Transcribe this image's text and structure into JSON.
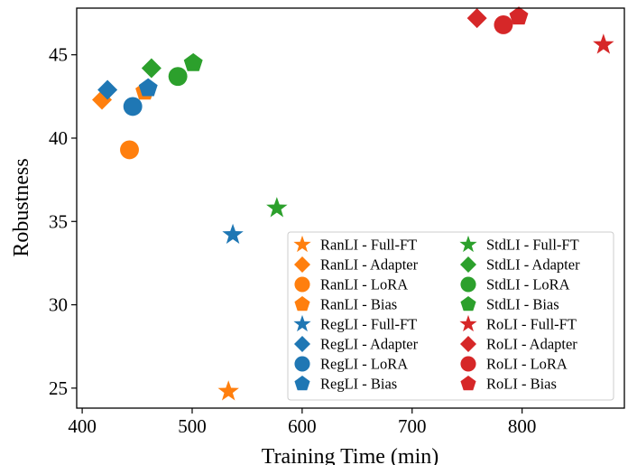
{
  "chart_data": {
    "type": "scatter",
    "title": "",
    "xlabel": "Training Time (min)",
    "ylabel": "Robustness",
    "xlim": [
      395,
      893
    ],
    "ylim": [
      23.8,
      47.8
    ],
    "xticks": [
      400,
      500,
      600,
      700,
      800
    ],
    "yticks": [
      25,
      30,
      35,
      40,
      45
    ],
    "grid": false,
    "legend_position": "bottom-right",
    "legend_columns": 2,
    "colors": {
      "RanLI": "#ff7f0e",
      "RegLI": "#1f77b4",
      "StdLI": "#2ca02c",
      "RoLI": "#d62728"
    },
    "markers": {
      "Full-FT": "star",
      "Adapter": "diamond",
      "LoRA": "circle",
      "Bias": "pentagon"
    },
    "series": [
      {
        "name": "RanLI - Full-FT",
        "method": "RanLI",
        "variant": "Full-FT",
        "x": 533,
        "y": 24.8
      },
      {
        "name": "RanLI - Adapter",
        "method": "RanLI",
        "variant": "Adapter",
        "x": 418,
        "y": 42.3
      },
      {
        "name": "RanLI - LoRA",
        "method": "RanLI",
        "variant": "LoRA",
        "x": 443,
        "y": 39.3
      },
      {
        "name": "RanLI - Bias",
        "method": "RanLI",
        "variant": "Bias",
        "x": 457,
        "y": 42.8
      },
      {
        "name": "RegLI - Full-FT",
        "method": "RegLI",
        "variant": "Full-FT",
        "x": 537,
        "y": 34.2
      },
      {
        "name": "RegLI - Adapter",
        "method": "RegLI",
        "variant": "Adapter",
        "x": 423,
        "y": 42.9
      },
      {
        "name": "RegLI - LoRA",
        "method": "RegLI",
        "variant": "LoRA",
        "x": 446,
        "y": 41.9
      },
      {
        "name": "RegLI - Bias",
        "method": "RegLI",
        "variant": "Bias",
        "x": 460,
        "y": 43.0
      },
      {
        "name": "StdLI - Full-FT",
        "method": "StdLI",
        "variant": "Full-FT",
        "x": 577,
        "y": 35.8
      },
      {
        "name": "StdLI - Adapter",
        "method": "StdLI",
        "variant": "Adapter",
        "x": 463,
        "y": 44.2
      },
      {
        "name": "StdLI - LoRA",
        "method": "StdLI",
        "variant": "LoRA",
        "x": 487,
        "y": 43.7
      },
      {
        "name": "StdLI - Bias",
        "method": "StdLI",
        "variant": "Bias",
        "x": 501,
        "y": 44.5
      },
      {
        "name": "RoLI - Full-FT",
        "method": "RoLI",
        "variant": "Full-FT",
        "x": 874,
        "y": 45.6
      },
      {
        "name": "RoLI - Adapter",
        "method": "RoLI",
        "variant": "Adapter",
        "x": 759,
        "y": 47.2
      },
      {
        "name": "RoLI - LoRA",
        "method": "RoLI",
        "variant": "LoRA",
        "x": 783,
        "y": 46.8
      },
      {
        "name": "RoLI - Bias",
        "method": "RoLI",
        "variant": "Bias",
        "x": 797,
        "y": 47.3
      }
    ]
  }
}
